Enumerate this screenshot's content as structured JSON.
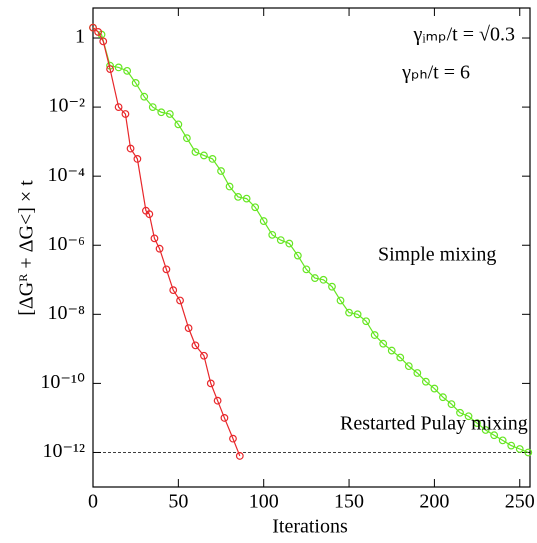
{
  "chart_data": {
    "type": "line",
    "xlabel": "Iterations",
    "ylabel": "[ΔGᴿ + ΔG˂] × t",
    "annotations": [
      "γᵢₘₚ/t = √0.3",
      "γₚₕ/t = 6"
    ],
    "log_y": true,
    "hline": 1e-12,
    "xlim": [
      0,
      256
    ],
    "ylim": [
      1e-13,
      7.4
    ],
    "xticks": [
      0,
      50,
      100,
      150,
      200,
      250
    ],
    "yticks": [
      1,
      {
        "value": 0.01,
        "label": "10⁻²"
      },
      {
        "value": 0.0001,
        "label": "10⁻⁴"
      },
      {
        "value": 1e-06,
        "label": "10⁻⁶"
      },
      {
        "value": 1e-08,
        "label": "10⁻⁸"
      },
      {
        "value": 1e-10,
        "label": "10⁻¹⁰"
      },
      {
        "value": 1e-12,
        "label": "10⁻¹²"
      }
    ],
    "series": [
      {
        "name": "Simple mixing",
        "color": "#66e622",
        "x": [
          0,
          5,
          10,
          15,
          20,
          25,
          30,
          35,
          40,
          45,
          50,
          55,
          60,
          65,
          70,
          75,
          80,
          85,
          90,
          95,
          100,
          105,
          110,
          115,
          120,
          125,
          130,
          135,
          140,
          145,
          150,
          155,
          160,
          165,
          170,
          175,
          180,
          185,
          190,
          195,
          200,
          205,
          210,
          215,
          220,
          225,
          230,
          235,
          240,
          245,
          250,
          255
        ],
        "values": [
          2,
          1.26,
          0.158,
          0.141,
          0.112,
          0.0501,
          0.02,
          0.01,
          0.00708,
          0.00631,
          0.00316,
          0.00126,
          0.000501,
          0.000398,
          0.000316,
          0.000141,
          5.01e-05,
          2.51e-05,
          2.24e-05,
          1.26e-05,
          5.01e-06,
          2e-06,
          1.41e-06,
          1.12e-06,
          5.01e-07,
          2e-07,
          1.12e-07,
          1e-07,
          6.31e-08,
          2.51e-08,
          1.12e-08,
          1e-08,
          6.31e-09,
          2.51e-09,
          1.41e-09,
          8.91e-10,
          5.62e-10,
          3.16e-10,
          2e-10,
          1.12e-10,
          7.08e-11,
          3.98e-11,
          2.51e-11,
          1.41e-11,
          1.12e-11,
          7.08e-12,
          4.47e-12,
          3.16e-12,
          2.24e-12,
          1.58e-12,
          1.26e-12,
          1e-12
        ]
      },
      {
        "name": "Restarted Pulay mixing",
        "color": "#e8272b",
        "x": [
          0,
          3,
          6,
          10,
          15,
          19,
          22,
          26,
          31,
          33,
          36,
          39,
          43,
          47,
          51,
          56,
          60,
          65,
          69,
          73,
          77,
          82,
          86
        ],
        "values": [
          2,
          1.5,
          0.8,
          0.126,
          0.01,
          0.00631,
          0.000631,
          0.000316,
          1e-05,
          7.94e-06,
          1.58e-06,
          7.94e-07,
          2e-07,
          5.01e-08,
          2.51e-08,
          3.98e-09,
          1.26e-09,
          6.31e-10,
          1e-10,
          3.16e-11,
          1e-11,
          2.51e-12,
          7.94e-13
        ]
      }
    ]
  }
}
